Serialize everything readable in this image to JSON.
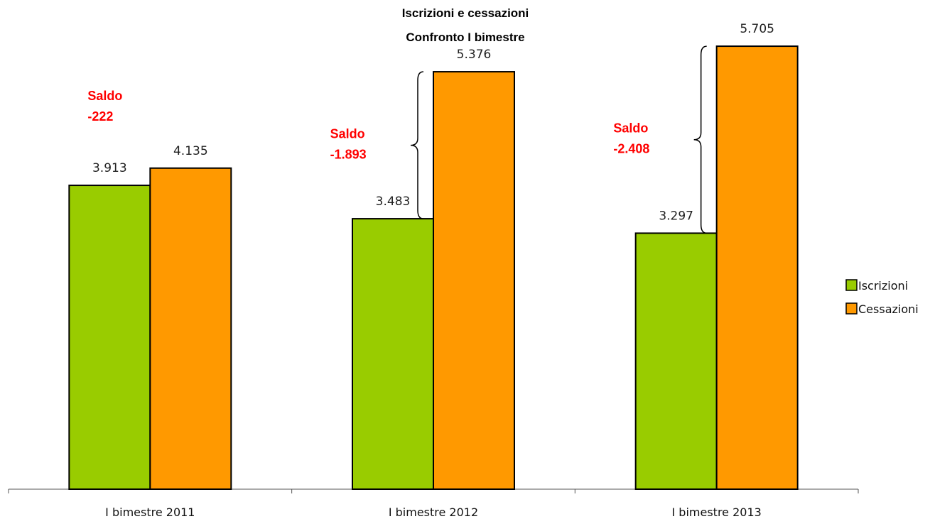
{
  "chart_data": {
    "type": "bar",
    "title": [
      "Iscrizioni e cessazioni",
      "Confronto I bimestre"
    ],
    "categories": [
      "I bimestre 2011",
      "I bimestre 2012",
      "I bimestre 2013"
    ],
    "series": [
      {
        "name": "Iscrizioni",
        "values": [
          3913,
          3483,
          3297
        ],
        "labels": [
          "3.913",
          "3.483",
          "3.297"
        ],
        "color": "#99cc00"
      },
      {
        "name": "Cessazioni",
        "values": [
          4135,
          5376,
          5705
        ],
        "labels": [
          "4.135",
          "5.376",
          "5.705"
        ],
        "color": "#ff9900"
      }
    ],
    "annotations": [
      {
        "category": "I bimestre 2011",
        "label": "Saldo",
        "value": "-222"
      },
      {
        "category": "I bimestre 2012",
        "label": "Saldo",
        "value": "-1.893"
      },
      {
        "category": "I bimestre 2013",
        "label": "Saldo",
        "value": "-2.408"
      }
    ],
    "annotation_color": "#ff0000",
    "ylim": [
      0,
      6000
    ],
    "y_axis_visible": false,
    "grid": false,
    "legend": "right"
  }
}
